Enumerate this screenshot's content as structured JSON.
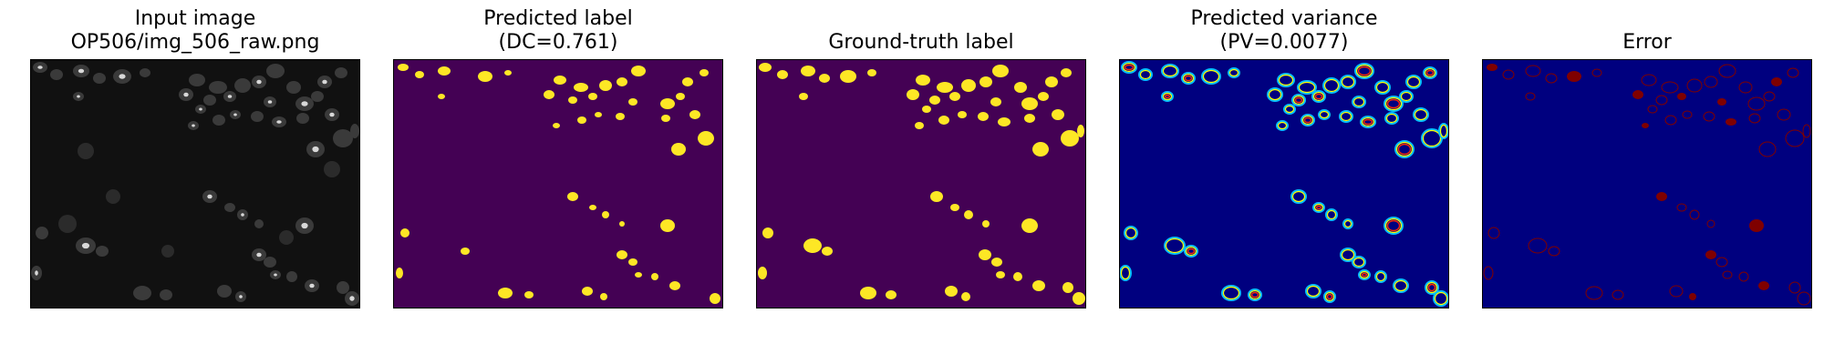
{
  "figure": {
    "panels": [
      {
        "title_line1": "Input image",
        "title_line2": "OP506/img_506_raw.png",
        "kind": "input"
      },
      {
        "title_line1": "Predicted label",
        "title_line2": "(DC=0.761)",
        "kind": "pred_label"
      },
      {
        "title_line1": "",
        "title_line2": "Ground-truth label",
        "kind": "gt_label"
      },
      {
        "title_line1": "Predicted variance",
        "title_line2": "(PV=0.0077)",
        "kind": "variance"
      },
      {
        "title_line1": "",
        "title_line2": "Error",
        "kind": "error"
      }
    ],
    "colors": {
      "label_background": "#440154",
      "label_foreground": "#fde725",
      "variance_background": "#00007f",
      "error_background": "#00007f",
      "error_foreground": "#7f0000",
      "input_background": "#111111"
    }
  }
}
